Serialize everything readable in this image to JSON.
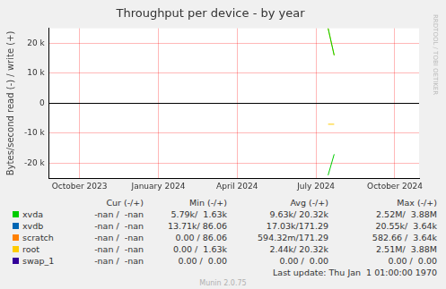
{
  "chart_data": {
    "type": "line",
    "title": "Throughput per device - by year",
    "y_label": "Bytes/second read (-) / write (+)",
    "watermark": "RRDTOOL / TOBI OETIKER",
    "last_update": "Last update: Thu Jan  1 01:00:00 1970",
    "footer": "Munin 2.0.75",
    "legend_columns": [
      "Cur (-/+)",
      "Min (-/+)",
      "Avg (-/+)",
      "Max (-/+)"
    ],
    "categories": [
      null,
      null,
      null,
      null,
      null,
      "October 2023",
      null,
      null,
      null,
      null,
      null,
      null,
      null,
      null,
      null,
      null,
      null,
      null,
      "January 2024",
      null,
      null,
      null,
      null,
      null,
      null,
      null,
      null,
      null,
      null,
      null,
      null,
      "April 2024",
      null,
      null,
      null,
      null,
      null,
      null,
      null,
      null,
      null,
      null,
      null,
      null,
      "July 2024",
      null,
      null,
      null,
      null,
      null,
      null,
      null,
      null,
      null,
      null,
      null,
      null,
      "October 2024",
      null,
      null,
      null,
      null
    ],
    "ylim": [
      -25000,
      25000
    ],
    "yticks": [
      {
        "value": -20000,
        "label": "-20 k"
      },
      {
        "value": -10000,
        "label": "-10 k"
      },
      0,
      {
        "value": 10000,
        "label": "10 k"
      },
      {
        "value": 20000,
        "label": "20 k"
      }
    ],
    "grid": true,
    "series": [
      {
        "name": "xvda",
        "color": "#00cc00",
        "read": [
          null,
          null,
          null,
          null,
          null,
          null,
          null,
          null,
          null,
          null,
          null,
          null,
          null,
          null,
          null,
          null,
          null,
          null,
          null,
          null,
          null,
          null,
          null,
          null,
          null,
          null,
          null,
          null,
          null,
          null,
          null,
          null,
          null,
          null,
          null,
          null,
          null,
          null,
          null,
          null,
          null,
          null,
          null,
          null,
          null,
          null,
          -24000,
          -17000,
          null,
          null,
          null,
          null,
          null,
          null,
          null,
          null,
          null,
          null,
          null,
          null,
          null,
          null
        ],
        "write": [
          null,
          null,
          null,
          null,
          null,
          null,
          null,
          null,
          null,
          null,
          null,
          null,
          null,
          null,
          null,
          null,
          null,
          null,
          null,
          null,
          null,
          null,
          null,
          null,
          null,
          null,
          null,
          null,
          null,
          null,
          null,
          null,
          null,
          null,
          null,
          null,
          null,
          null,
          null,
          null,
          null,
          null,
          null,
          null,
          null,
          null,
          25000,
          16000,
          null,
          null,
          null,
          null,
          null,
          null,
          null,
          null,
          null,
          null,
          null,
          null,
          null,
          null
        ],
        "cur": "-nan /  -nan",
        "min": "5.79k/  1.63k",
        "avg": "9.63k/ 20.32k",
        "max": "2.52M/  3.88M"
      },
      {
        "name": "xvdb",
        "color": "#0066b3",
        "cur": "-nan /  -nan",
        "min": "13.71k/ 86.06",
        "avg": "17.03k/171.29",
        "max": "20.55k/  3.64k"
      },
      {
        "name": "scratch",
        "color": "#ff8000",
        "cur": "-nan /  -nan",
        "min": "0.00 / 86.06",
        "avg": "594.32m/171.29",
        "max": "582.66 /  3.64k"
      },
      {
        "name": "root",
        "color": "#ffcc00",
        "read": [
          null,
          null,
          null,
          null,
          null,
          null,
          null,
          null,
          null,
          null,
          null,
          null,
          null,
          null,
          null,
          null,
          null,
          null,
          null,
          null,
          null,
          null,
          null,
          null,
          null,
          null,
          null,
          null,
          null,
          null,
          null,
          null,
          null,
          null,
          null,
          null,
          null,
          null,
          null,
          null,
          null,
          null,
          null,
          null,
          null,
          null,
          -7000,
          -7000,
          null,
          null,
          null,
          null,
          null,
          null,
          null,
          null,
          null,
          null,
          null,
          null,
          null,
          null
        ],
        "write": [
          null,
          null,
          null,
          null,
          null,
          null,
          null,
          null,
          null,
          null,
          null,
          null,
          null,
          null,
          null,
          null,
          null,
          null,
          null,
          null,
          null,
          null,
          null,
          null,
          null,
          null,
          null,
          null,
          null,
          null,
          null,
          null,
          null,
          null,
          null,
          null,
          null,
          null,
          null,
          null,
          null,
          null,
          null,
          null,
          null,
          null,
          25000,
          16000,
          null,
          null,
          null,
          null,
          null,
          null,
          null,
          null,
          null,
          null,
          null,
          null,
          null,
          null
        ],
        "cur": "-nan /  -nan",
        "min": "0.00 /  1.63k",
        "avg": "2.44k/ 20.32k",
        "max": "2.51M/  3.88M"
      },
      {
        "name": "swap_1",
        "color": "#330099",
        "cur": "-nan /  -nan",
        "min": "0.00 /  0.00",
        "avg": "0.00 /  0.00",
        "max": "0.00 /  0.00"
      }
    ]
  }
}
